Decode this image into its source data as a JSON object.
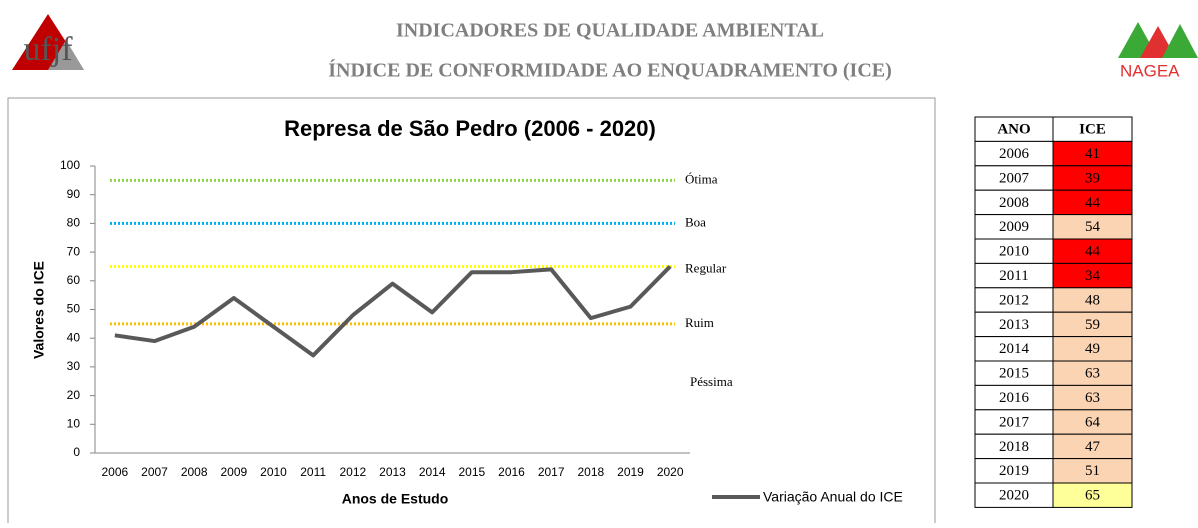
{
  "header": {
    "title": "INDICADORES DE QUALIDADE AMBIENTAL",
    "subtitle": "ÍNDICE DE CONFORMIDADE AO ENQUADRAMENTO (ICE)",
    "left_logo": "ufjf",
    "right_logo": "NAGEA"
  },
  "chart_data": {
    "type": "line",
    "title": "Represa de São Pedro (2006 - 2020)",
    "x_label": "Anos de Estudo",
    "y_label": "Valores do ICE",
    "categories": [
      "2006",
      "2007",
      "2008",
      "2009",
      "2010",
      "2011",
      "2012",
      "2013",
      "2014",
      "2015",
      "2016",
      "2017",
      "2018",
      "2019",
      "2020"
    ],
    "series": [
      {
        "name": "Variação Anual do ICE",
        "color": "#595959",
        "values": [
          41,
          39,
          44,
          54,
          44,
          34,
          48,
          59,
          49,
          63,
          63,
          64,
          47,
          51,
          65
        ]
      }
    ],
    "ylim": [
      0,
      100
    ],
    "yticks": [
      0,
      10,
      20,
      30,
      40,
      50,
      60,
      70,
      80,
      90,
      100
    ],
    "reference_lines": [
      {
        "label": "Ótima",
        "value": 95,
        "color": "#92d050"
      },
      {
        "label": "Boa",
        "value": 80,
        "color": "#00b0f0"
      },
      {
        "label": "Regular",
        "value": 65,
        "color": "#ffff00"
      },
      {
        "label": "Ruim",
        "value": 45,
        "color": "#ffc000"
      }
    ],
    "band_label": "Péssima",
    "legend": "bottom-right"
  },
  "table": {
    "headers": [
      "ANO",
      "ICE"
    ],
    "rows": [
      [
        "2006",
        41
      ],
      [
        "2007",
        39
      ],
      [
        "2008",
        44
      ],
      [
        "2009",
        54
      ],
      [
        "2010",
        44
      ],
      [
        "2011",
        34
      ],
      [
        "2012",
        48
      ],
      [
        "2013",
        59
      ],
      [
        "2014",
        49
      ],
      [
        "2015",
        63
      ],
      [
        "2016",
        63
      ],
      [
        "2017",
        64
      ],
      [
        "2018",
        47
      ],
      [
        "2019",
        51
      ],
      [
        "2020",
        65
      ]
    ],
    "cell_colors": [
      "#ff0000",
      "#ff0000",
      "#ff0000",
      "#fbd4b4",
      "#ff0000",
      "#ff0000",
      "#fbd4b4",
      "#fbd4b4",
      "#fbd4b4",
      "#fbd4b4",
      "#fbd4b4",
      "#fbd4b4",
      "#fbd4b4",
      "#fbd4b4",
      "#ffff99"
    ]
  }
}
